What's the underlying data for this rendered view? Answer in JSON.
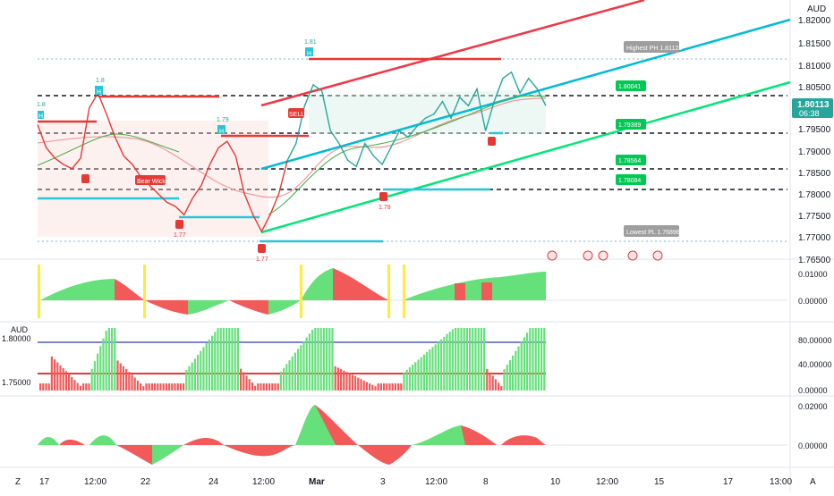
{
  "header": {
    "currency": "AUD"
  },
  "price_scale": {
    "ticks": [
      "1.82000",
      "1.81500",
      "1.81000",
      "1.80500",
      "1.79500",
      "1.79000",
      "1.78500",
      "1.78000",
      "1.77500",
      "1.77000",
      "1.76500"
    ],
    "current_price": "1.80113",
    "countdown": "06:38"
  },
  "levels": {
    "highest_ph": "Highest PH 1.81123",
    "lowest_pl": "Lowest PL 1.76896",
    "green_tags": [
      "1.80041",
      "1.79389",
      "1.78564",
      "1.78084"
    ]
  },
  "annotations": {
    "bear_wick": "Bear Wick",
    "sell": "SELL",
    "h_markers": [
      "H",
      "H",
      "H",
      "H"
    ],
    "values": [
      "1.8",
      "1.8",
      "1.79",
      "1.81",
      "1.77",
      "1.77",
      "1.78"
    ]
  },
  "panes": {
    "osc1_ticks": [
      "0.01000",
      "0.00000"
    ],
    "osc2_ticks": [
      "80.00000",
      "40.00000",
      "0.00000"
    ],
    "osc2_left_label": "AUD",
    "osc2_left_ticks": [
      "1.80000",
      "1.75000"
    ],
    "osc3_ticks": [
      "0.02000",
      "0.00000"
    ]
  },
  "time_axis": {
    "labels": [
      "17",
      "12:00",
      "22",
      "24",
      "12:00",
      "Mar",
      "3",
      "12:00",
      "8",
      "10",
      "12:00",
      "15",
      "17",
      "13:00"
    ]
  },
  "toolbar": {
    "tz_label": "Z",
    "auto_label": "A"
  },
  "colors": {
    "up": "#26a69a",
    "down": "#ef5350",
    "price_tag": "#26a69a",
    "blue_channel": "#2196f3",
    "green_channel": "#00e676",
    "red_channel": "#f23645",
    "cyan_level": "#00bcd4"
  },
  "chart_data": {
    "type": "line",
    "price_series": [
      1.7975,
      1.792,
      1.7895,
      1.788,
      1.787,
      1.7895,
      1.8015,
      1.805,
      1.8,
      1.7945,
      1.79,
      1.788,
      1.785,
      1.783,
      1.781,
      1.779,
      1.778,
      1.776,
      1.78,
      1.783,
      1.788,
      1.792,
      1.7935,
      1.79,
      1.781,
      1.776,
      1.772,
      1.776,
      1.781,
      1.789,
      1.793,
      1.802,
      1.807,
      1.8055,
      1.796,
      1.793,
      1.789,
      1.7875,
      1.793,
      1.79,
      1.788,
      1.792,
      1.796,
      1.7945,
      1.797,
      1.799,
      1.8,
      1.803,
      1.799,
      1.804,
      1.802,
      1.806,
      1.796,
      1.803,
      1.8085,
      1.81,
      1.805,
      1.8085,
      1.806,
      1.802
    ],
    "price_range": [
      1.765,
      1.8225
    ]
  }
}
